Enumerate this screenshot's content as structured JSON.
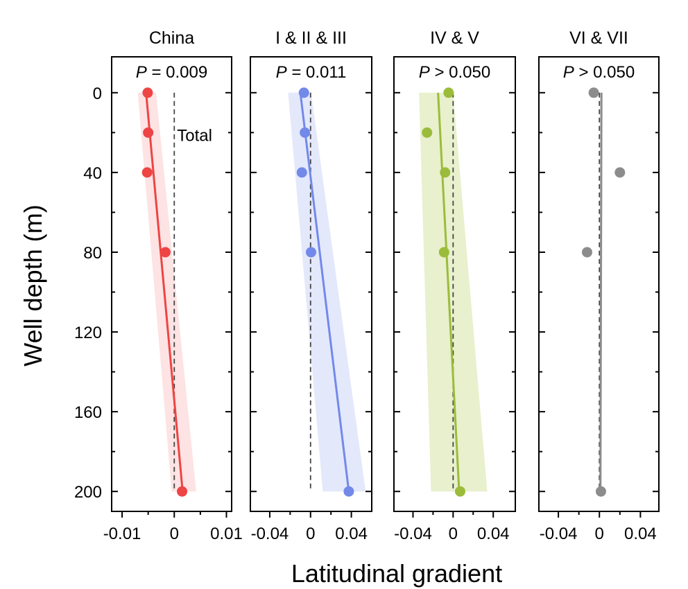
{
  "chart_data": {
    "type": "scatter",
    "ylabel": "Well depth (m)",
    "xlabel": "Latitudinal gradient",
    "y_range": [
      -18,
      210
    ],
    "y_ticks": [
      0,
      40,
      80,
      120,
      160,
      200
    ],
    "y_tick_labels": [
      "0",
      "40",
      "80",
      "120",
      "160",
      "200"
    ],
    "panels": [
      {
        "title": "China",
        "p_prefix": "P",
        "p_rest": " = 0.009",
        "annotation": "Total",
        "color": "#ee4444",
        "band_color": "#fde3e3",
        "x_range": [
          -0.012,
          0.011
        ],
        "x_ticks": [
          -0.01,
          0,
          0.01
        ],
        "x_tick_labels": [
          "-0.01",
          "0",
          "0.01"
        ],
        "points": [
          {
            "x": -0.0051,
            "y": 0
          },
          {
            "x": -0.005,
            "y": 20
          },
          {
            "x": -0.0052,
            "y": 40
          },
          {
            "x": -0.0017,
            "y": 80
          },
          {
            "x": 0.0015,
            "y": 200
          }
        ],
        "fit": {
          "y0": 0,
          "x0": -0.0054,
          "y1": 200,
          "x1": 0.0016
        },
        "band": {
          "top": [
            -0.007,
            -0.0035
          ],
          "bottom": [
            -0.0005,
            0.0042
          ]
        }
      },
      {
        "title": "I & II & III",
        "p_prefix": "P",
        "p_rest": " = 0.011",
        "color": "#7289ea",
        "band_color": "#e4e8fb",
        "x_range": [
          -0.059,
          0.06
        ],
        "x_ticks": [
          -0.04,
          0,
          0.04
        ],
        "x_tick_labels": [
          "-0.04",
          "0",
          "0.04"
        ],
        "points": [
          {
            "x": -0.0065,
            "y": 0
          },
          {
            "x": -0.0055,
            "y": 20
          },
          {
            "x": -0.0085,
            "y": 40
          },
          {
            "x": 0.0005,
            "y": 80
          },
          {
            "x": 0.0375,
            "y": 200
          }
        ],
        "fit": {
          "y0": 0,
          "x0": -0.01,
          "y1": 200,
          "x1": 0.0375
        },
        "band": {
          "top": [
            -0.022,
            0.0005
          ],
          "bottom": [
            0.012,
            0.054
          ]
        }
      },
      {
        "title": "IV & V",
        "p_prefix": "P",
        "p_rest": " > 0.050",
        "color": "#9bbc3b",
        "band_color": "#e8f0cd",
        "x_range": [
          -0.059,
          0.062
        ],
        "x_ticks": [
          -0.04,
          0,
          0.04
        ],
        "x_tick_labels": [
          "-0.04",
          "0",
          "0.04"
        ],
        "points": [
          {
            "x": -0.0045,
            "y": 0
          },
          {
            "x": -0.026,
            "y": 20
          },
          {
            "x": -0.008,
            "y": 40
          },
          {
            "x": -0.009,
            "y": 80
          },
          {
            "x": 0.007,
            "y": 200
          }
        ],
        "fit": {
          "y0": 0,
          "x0": -0.015,
          "y1": 200,
          "x1": 0.006
        },
        "band": {
          "top": [
            -0.034,
            0.0
          ],
          "bottom": [
            -0.022,
            0.034
          ]
        }
      },
      {
        "title": "VI & VII",
        "p_prefix": "P",
        "p_rest": " > 0.050",
        "color": "#8c8c8c",
        "band_color": "#eeeeee",
        "x_range": [
          -0.059,
          0.058
        ],
        "x_ticks": [
          -0.04,
          0,
          0.04
        ],
        "x_tick_labels": [
          "-0.04",
          "0",
          "0.04"
        ],
        "points": [
          {
            "x": -0.0055,
            "y": 0
          },
          {
            "x": 0.02,
            "y": 40
          },
          {
            "x": -0.012,
            "y": 80
          },
          {
            "x": 0.0015,
            "y": 200
          }
        ],
        "fit": {
          "y0": 0,
          "x0": 0.002,
          "y1": 200,
          "x1": 0.001
        },
        "band": {
          "top": [
            0.001,
            0.003
          ],
          "bottom": [
            0.0,
            0.002
          ]
        }
      }
    ]
  }
}
